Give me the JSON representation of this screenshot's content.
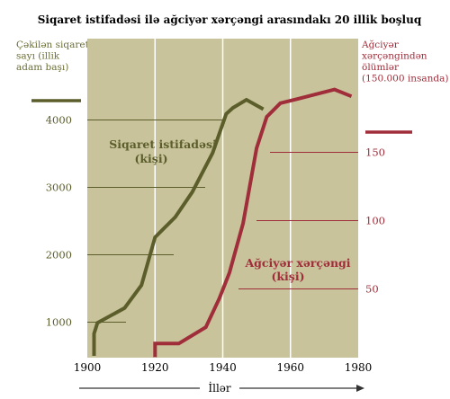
{
  "chart_data": {
    "type": "line",
    "title": "Siqaret istifadəsi ilə ağciyər xərçəngi arasındakı 20 illik boşluq",
    "xlabel": "İllər",
    "x_ticks": [
      1900,
      1920,
      1940,
      1960,
      1980
    ],
    "xlim": [
      1900,
      1980
    ],
    "grid": true,
    "colors": {
      "background": "#c8c39b",
      "cigarette": "#5b5e2b",
      "cancer": "#a02d3a",
      "grid": "#ffffff"
    },
    "left_axis": {
      "label": "Çəkilən siqaret sayı (illik adam başı)",
      "ticks": [
        1000,
        2000,
        3000,
        4000
      ],
      "ylim": [
        500,
        4400
      ]
    },
    "right_axis": {
      "label": "Ağciyər xərçəngindən ölümlər (150.000 insanda)",
      "ticks": [
        50,
        100,
        150
      ],
      "ylim": [
        0,
        200
      ]
    },
    "series": [
      {
        "name": "Siqaret istifadəsi (kişi)",
        "axis": "left",
        "x": [
          1902,
          1902,
          1903,
          1911,
          1916,
          1920,
          1926,
          1931,
          1937,
          1941,
          1943,
          1947,
          1952
        ],
        "y": [
          500,
          830,
          990,
          1210,
          1550,
          2260,
          2560,
          2930,
          3510,
          4090,
          4180,
          4300,
          4160
        ]
      },
      {
        "name": "Ağciyər xərçəngi (kişi)",
        "axis": "right",
        "x": [
          1920,
          1920,
          1927,
          1935,
          1939,
          1942,
          1946,
          1950,
          1953,
          1957,
          1962,
          1973,
          1978
        ],
        "y": [
          0,
          10,
          10,
          22,
          43,
          62,
          98,
          153,
          176,
          186,
          189,
          196,
          191
        ]
      }
    ]
  }
}
